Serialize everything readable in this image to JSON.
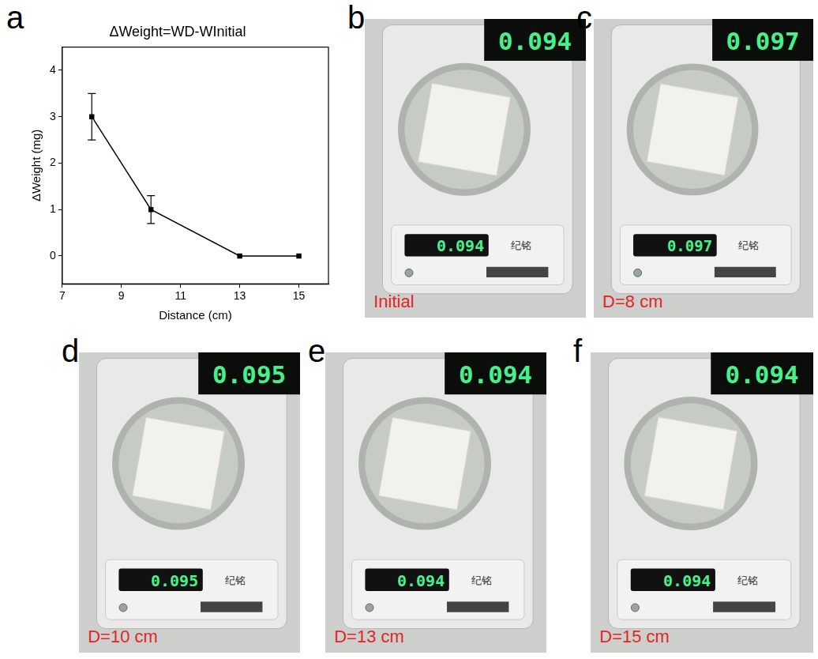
{
  "chart_data": {
    "panel": "a",
    "type": "line",
    "title": "ΔWeight=WD-WInitial",
    "x_label": "Distance (cm)",
    "y_label": "ΔWeight (mg)",
    "x": [
      8,
      10,
      13,
      15
    ],
    "values": [
      3,
      1,
      0,
      0
    ],
    "error": [
      0.5,
      0.3,
      0,
      0
    ],
    "color": "#000000",
    "marker": "square",
    "xlim": [
      7,
      16
    ],
    "xticks": [
      7,
      9,
      11,
      13,
      15
    ],
    "ylim": [
      -0.6,
      4.5
    ],
    "yticks": [
      0,
      1,
      2,
      3,
      4
    ],
    "grid": false
  },
  "balance_brand": "纪铭",
  "photos": [
    {
      "panel": "b",
      "reading": "0.094",
      "caption": "Initial"
    },
    {
      "panel": "c",
      "reading": "0.097",
      "caption": "D=8 cm"
    },
    {
      "panel": "d",
      "reading": "0.095",
      "caption": "D=10 cm"
    },
    {
      "panel": "e",
      "reading": "0.094",
      "caption": "D=13 cm"
    },
    {
      "panel": "f",
      "reading": "0.094",
      "caption": "D=15 cm"
    }
  ]
}
